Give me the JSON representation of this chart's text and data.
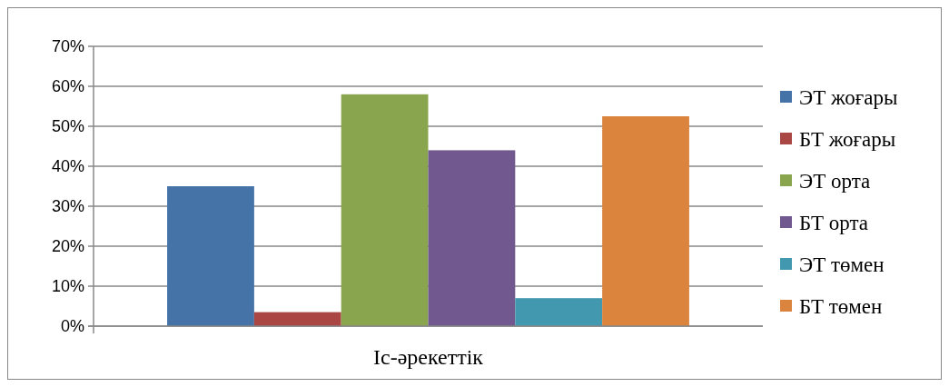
{
  "chart_data": {
    "type": "bar",
    "categories": [
      "Іс-әрекеттік"
    ],
    "series": [
      {
        "name": "ЭТ жоғары",
        "color": "#4572a7",
        "values": [
          35
        ]
      },
      {
        "name": "БТ жоғары",
        "color": "#aa4643",
        "values": [
          3.5
        ]
      },
      {
        "name": "ЭТ орта",
        "color": "#89a54e",
        "values": [
          58
        ]
      },
      {
        "name": "БТ орта",
        "color": "#71588f",
        "values": [
          44
        ]
      },
      {
        "name": "ЭТ төмен",
        "color": "#4198af",
        "values": [
          7
        ]
      },
      {
        "name": "БТ төмен",
        "color": "#db843d",
        "values": [
          52.5
        ]
      }
    ],
    "ylim": [
      0,
      70
    ],
    "yticks": [
      {
        "value": 0,
        "label": "0%"
      },
      {
        "value": 10,
        "label": "10%"
      },
      {
        "value": 20,
        "label": "20%"
      },
      {
        "value": 30,
        "label": "30%"
      },
      {
        "value": 40,
        "label": "40%"
      },
      {
        "value": 50,
        "label": "50%"
      },
      {
        "value": 60,
        "label": "60%"
      },
      {
        "value": 70,
        "label": "70%"
      }
    ],
    "grid": "y",
    "legend": "right"
  }
}
